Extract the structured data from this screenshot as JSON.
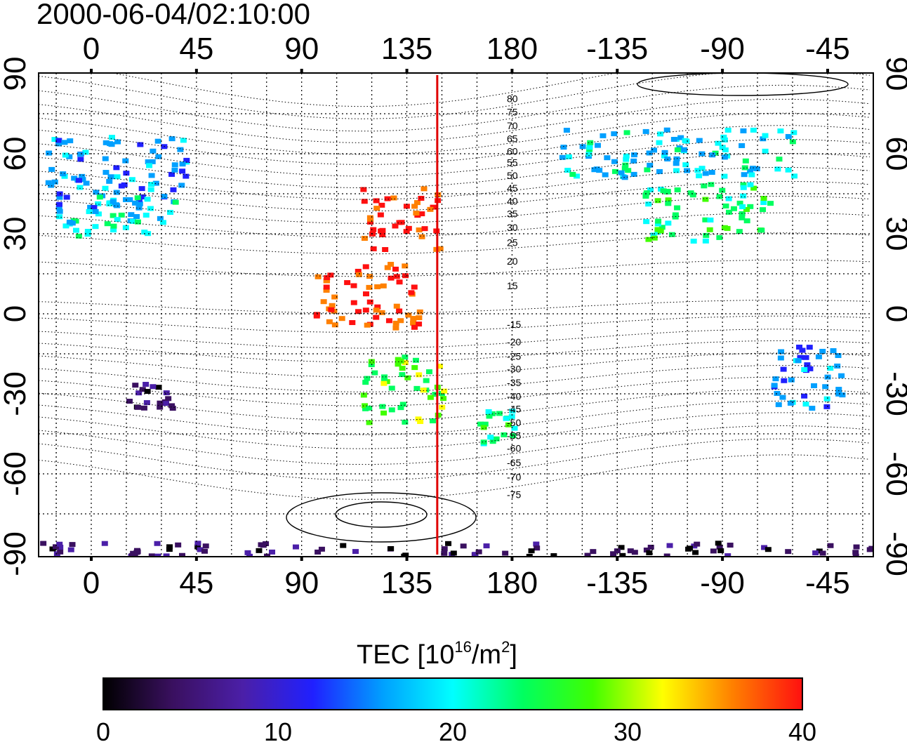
{
  "title": "2000-06-04/02:10:00",
  "lon_labels": [
    "0",
    "45",
    "90",
    "135",
    "180",
    "-135",
    "-90",
    "-45"
  ],
  "lat_labels": [
    "90",
    "60",
    "30",
    "0",
    "-30",
    "-60",
    "-90"
  ],
  "contour_labels": [
    {
      "text": "80",
      "lat": 80.7
    },
    {
      "text": "75",
      "lat": 75.6
    },
    {
      "text": "70",
      "lat": 70.5
    },
    {
      "text": "65",
      "lat": 65.7
    },
    {
      "text": "60",
      "lat": 60.9
    },
    {
      "text": "55",
      "lat": 56.7
    },
    {
      "text": "50",
      "lat": 51.9
    },
    {
      "text": "45",
      "lat": 47.1
    },
    {
      "text": "40",
      "lat": 42.3
    },
    {
      "text": "35",
      "lat": 37.5
    },
    {
      "text": "30",
      "lat": 32.4
    },
    {
      "text": "25",
      "lat": 26.7
    },
    {
      "text": "20",
      "lat": 19.8
    },
    {
      "text": "15",
      "lat": 10.5
    },
    {
      "text": "-15",
      "lat": -3.9
    },
    {
      "text": "-20",
      "lat": -10.5
    },
    {
      "text": "-25",
      "lat": -15.9
    },
    {
      "text": "-30",
      "lat": -20.7
    },
    {
      "text": "-35",
      "lat": -25.8
    },
    {
      "text": "-40",
      "lat": -30.9
    },
    {
      "text": "-45",
      "lat": -35.7
    },
    {
      "text": "-50",
      "lat": -40.8
    },
    {
      "text": "-55",
      "lat": -45.6
    },
    {
      "text": "-60",
      "lat": -50.4
    },
    {
      "text": "-65",
      "lat": -55.8
    },
    {
      "text": "-70",
      "lat": -61.2
    },
    {
      "text": "-75",
      "lat": -67.8
    }
  ],
  "colorbar": {
    "title": "TEC  [10",
    "title_sup": "16",
    "title_unit": "/m",
    "title_unit_sup": "2",
    "title_close": "]",
    "ticks": [
      "0",
      "10",
      "20",
      "30",
      "40"
    ]
  },
  "map": {
    "lon_center": 133,
    "lat_range": [
      -90,
      90
    ],
    "lon_range_degrees": 360,
    "meridian_marker_lon": 148,
    "meridian_marker_color": "#e00000"
  },
  "tec_regions": [
    {
      "name": "europe",
      "lon": [
        -20,
        40
      ],
      "lat": [
        40,
        68
      ],
      "tec": 16
    },
    {
      "name": "mediterranean",
      "lon": [
        -15,
        35
      ],
      "lat": [
        30,
        45
      ],
      "tec": 21
    },
    {
      "name": "east-asia",
      "lon": [
        115,
        148
      ],
      "lat": [
        25,
        48
      ],
      "tec": 39
    },
    {
      "name": "southeast-asia",
      "lon": [
        95,
        140
      ],
      "lat": [
        -5,
        20
      ],
      "tec": 38
    },
    {
      "name": "australia",
      "lon": [
        115,
        150
      ],
      "lat": [
        -40,
        -15
      ],
      "tec": 27
    },
    {
      "name": "new-zealand",
      "lon": [
        165,
        180
      ],
      "lat": [
        -48,
        -35
      ],
      "tec": 23
    },
    {
      "name": "north-america",
      "lon": [
        -125,
        -70
      ],
      "lat": [
        28,
        50
      ],
      "tec": 24
    },
    {
      "name": "alaska-canada",
      "lon": [
        -160,
        -60
      ],
      "lat": [
        52,
        70
      ],
      "tec": 19
    },
    {
      "name": "south-america",
      "lon": [
        -70,
        -40
      ],
      "lat": [
        -35,
        -10
      ],
      "tec": 15
    },
    {
      "name": "africa-south",
      "lon": [
        15,
        35
      ],
      "lat": [
        -35,
        -25
      ],
      "tec": 4
    },
    {
      "name": "antarctica",
      "lon": [
        -30,
        330
      ],
      "lat": [
        -90,
        -85
      ],
      "tec": 4
    }
  ],
  "colorscale": [
    "#000000",
    "#3a1060",
    "#4b1fa8",
    "#2020ff",
    "#00a0ff",
    "#00ffff",
    "#00ff60",
    "#40ff00",
    "#ffff00",
    "#ff8000",
    "#ff1010"
  ]
}
